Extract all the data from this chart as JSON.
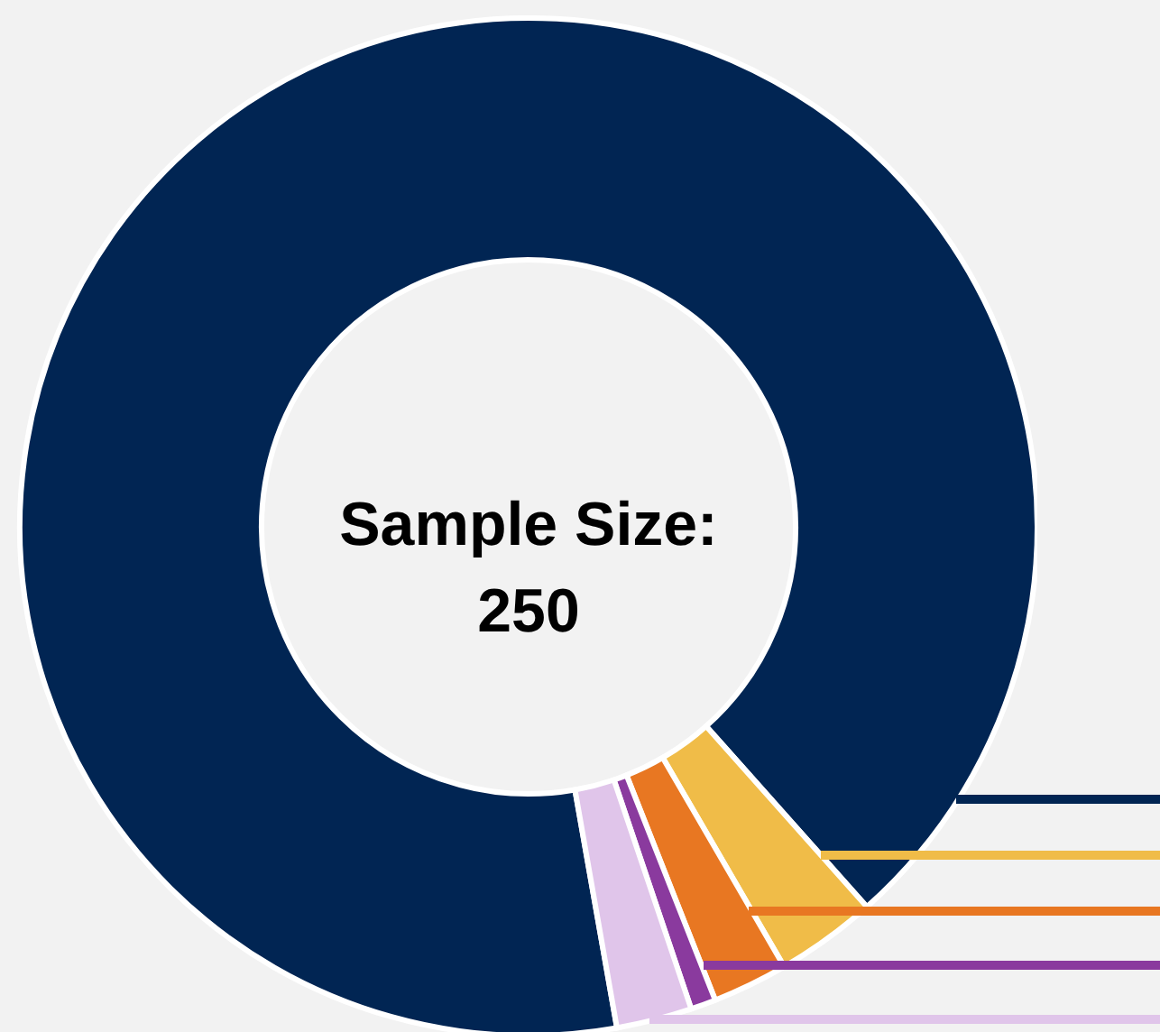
{
  "chart_data": {
    "type": "donut",
    "categories": [
      null,
      null,
      null,
      null,
      null
    ],
    "values": [
      91.2,
      3.2,
      2.4,
      0.8,
      2.4
    ],
    "colors": [
      "#012553",
      "#f0bc48",
      "#e87722",
      "#8a3a9e",
      "#e0c5ea"
    ],
    "annotations": [
      "Sample Size:",
      "250"
    ]
  }
}
